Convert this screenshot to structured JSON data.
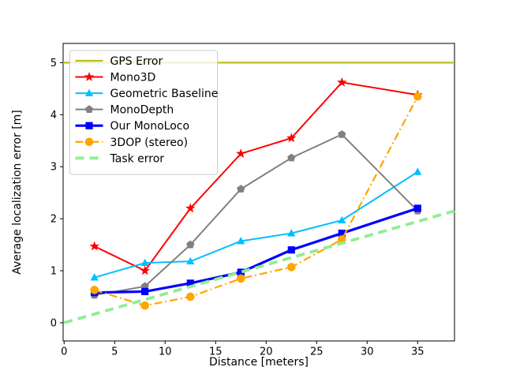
{
  "chart_data": {
    "type": "line",
    "title": "",
    "xlabel": "Distance [meters]",
    "ylabel": "Average localization error [m]",
    "xlim": [
      -0.1,
      38.65
    ],
    "ylim": [
      -0.35,
      5.37
    ],
    "xticks": [
      0,
      5,
      10,
      15,
      20,
      25,
      30,
      35
    ],
    "yticks": [
      0,
      1,
      2,
      3,
      4,
      5
    ],
    "grid": false,
    "legend": {
      "position": "upper-left",
      "background": "rgba(255,255,255,0.8)",
      "border_color": "#cccccc"
    },
    "x": [
      3,
      8,
      12.5,
      17.5,
      22.5,
      27.5,
      35
    ],
    "series": [
      {
        "name": "GPS Error",
        "color": "#bcbd22",
        "linestyle": "solid",
        "marker": "none",
        "linewidth": 2.2,
        "custom_x": [
          -0.1,
          38.65
        ],
        "custom_y": [
          5,
          5
        ]
      },
      {
        "name": "Mono3D",
        "color": "#ff0000",
        "linestyle": "solid",
        "marker": "star",
        "linewidth": 2,
        "values": [
          1.47,
          1.0,
          2.2,
          3.25,
          3.55,
          4.62,
          4.38
        ]
      },
      {
        "name": "Geometric Baseline",
        "color": "#00bfff",
        "linestyle": "solid",
        "marker": "triangle",
        "linewidth": 2,
        "values": [
          0.87,
          1.15,
          1.18,
          1.57,
          1.72,
          1.97,
          2.9
        ]
      },
      {
        "name": "MonoDepth",
        "color": "#808080",
        "linestyle": "solid",
        "marker": "pentagon",
        "linewidth": 2,
        "values": [
          0.53,
          0.7,
          1.5,
          2.57,
          3.17,
          3.62,
          2.15
        ]
      },
      {
        "name": "Our MonoLoco",
        "color": "#0000ff",
        "linestyle": "solid",
        "marker": "square",
        "linewidth": 3.2,
        "values": [
          0.58,
          0.6,
          0.76,
          0.97,
          1.4,
          1.72,
          2.2
        ]
      },
      {
        "name": "3DOP (stereo)",
        "color": "#ffa500",
        "linestyle": "dashdot",
        "marker": "circle",
        "linewidth": 2.2,
        "values": [
          0.63,
          0.33,
          0.5,
          0.85,
          1.07,
          1.6,
          4.35
        ]
      },
      {
        "name": "Task error",
        "color": "#90ee90",
        "linestyle": "dashed",
        "marker": "none",
        "linewidth": 3.8,
        "custom_x": [
          0,
          38.65
        ],
        "custom_y": [
          0,
          2.15
        ]
      }
    ]
  }
}
